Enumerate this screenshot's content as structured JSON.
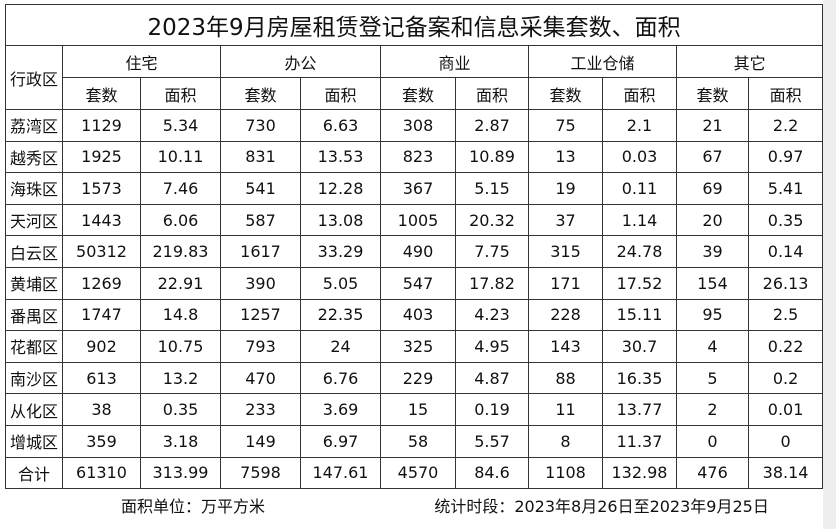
{
  "header": {
    "title": "2023年9月房屋租赁登记备案和信息采集套数、面积"
  },
  "table": {
    "row_header": "行政区",
    "groups": [
      "住宅",
      "办公",
      "商业",
      "工业仓储",
      "其它"
    ],
    "subheaders": [
      "套数",
      "面积",
      "套数",
      "面积",
      "套数",
      "面积",
      "套数",
      "面积",
      "套数",
      "面积"
    ],
    "rows": [
      [
        "荔湾区",
        "1129",
        "5.34",
        "730",
        "6.63",
        "308",
        "2.87",
        "75",
        "2.1",
        "21",
        "2.2"
      ],
      [
        "越秀区",
        "1925",
        "10.11",
        "831",
        "13.53",
        "823",
        "10.89",
        "13",
        "0.03",
        "67",
        "0.97"
      ],
      [
        "海珠区",
        "1573",
        "7.46",
        "541",
        "12.28",
        "367",
        "5.15",
        "19",
        "0.11",
        "69",
        "5.41"
      ],
      [
        "天河区",
        "1443",
        "6.06",
        "587",
        "13.08",
        "1005",
        "20.32",
        "37",
        "1.14",
        "20",
        "0.35"
      ],
      [
        "白云区",
        "50312",
        "219.83",
        "1617",
        "33.29",
        "490",
        "7.75",
        "315",
        "24.78",
        "39",
        "0.14"
      ],
      [
        "黄埔区",
        "1269",
        "22.91",
        "390",
        "5.05",
        "547",
        "17.82",
        "171",
        "17.52",
        "154",
        "26.13"
      ],
      [
        "番禺区",
        "1747",
        "14.8",
        "1257",
        "22.35",
        "403",
        "4.23",
        "228",
        "15.11",
        "95",
        "2.5"
      ],
      [
        "花都区",
        "902",
        "10.75",
        "793",
        "24",
        "325",
        "4.95",
        "143",
        "30.7",
        "4",
        "0.22"
      ],
      [
        "南沙区",
        "613",
        "13.2",
        "470",
        "6.76",
        "229",
        "4.87",
        "88",
        "16.35",
        "5",
        "0.2"
      ],
      [
        "从化区",
        "38",
        "0.35",
        "233",
        "3.69",
        "15",
        "0.19",
        "11",
        "13.77",
        "2",
        "0.01"
      ],
      [
        "增城区",
        "359",
        "3.18",
        "149",
        "6.97",
        "58",
        "5.57",
        "8",
        "11.37",
        "0",
        "0"
      ],
      [
        "合计",
        "61310",
        "313.99",
        "7598",
        "147.61",
        "4570",
        "84.6",
        "1108",
        "132.98",
        "476",
        "38.14"
      ]
    ]
  },
  "footer": {
    "unit": "面积单位：万平方米",
    "period": "统计时段：2023年8月26日至2023年9月25日"
  }
}
